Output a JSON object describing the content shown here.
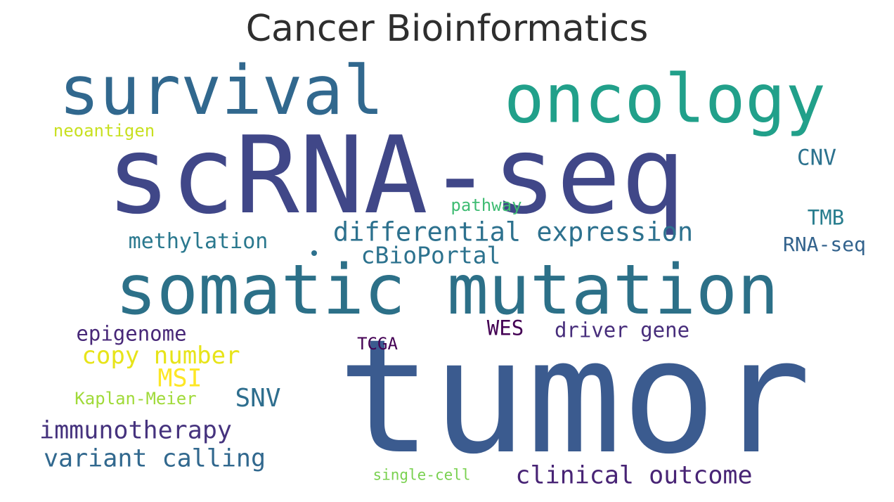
{
  "title": "Cancer Bioinformatics",
  "words": [
    {
      "id": "tumor",
      "text": "tumor",
      "color": "#3b5b8f"
    },
    {
      "id": "scrna-seq",
      "text": "scRNA-seq",
      "color": "#404788"
    },
    {
      "id": "somatic-mutation",
      "text": "somatic mutation",
      "color": "#2c7088"
    },
    {
      "id": "survival",
      "text": "survival",
      "color": "#31688e"
    },
    {
      "id": "oncology",
      "text": "oncology",
      "color": "#21a08a"
    },
    {
      "id": "differential-expression",
      "text": "differential expression",
      "color": "#2d718e"
    },
    {
      "id": "cbioportal",
      "text": "cBioPortal",
      "color": "#2c728e"
    },
    {
      "id": "methylation",
      "text": "methylation",
      "color": "#2a788e"
    },
    {
      "id": "pathway",
      "text": "pathway",
      "color": "#3fbc73"
    },
    {
      "id": "neoantigen",
      "text": "neoantigen",
      "color": "#c8e020"
    },
    {
      "id": "cnv",
      "text": "CNV",
      "color": "#2c728e"
    },
    {
      "id": "tmb",
      "text": "TMB",
      "color": "#287d8e"
    },
    {
      "id": "rna-seq",
      "text": "RNA-seq",
      "color": "#33638d"
    },
    {
      "id": "epigenome",
      "text": "epigenome",
      "color": "#482878"
    },
    {
      "id": "copy-number",
      "text": "copy number",
      "color": "#e7e419"
    },
    {
      "id": "msi",
      "text": "MSI",
      "color": "#fde725"
    },
    {
      "id": "wes",
      "text": "WES",
      "color": "#440154"
    },
    {
      "id": "driver-gene",
      "text": "driver gene",
      "color": "#472d7b"
    },
    {
      "id": "tcga",
      "text": "TCGA",
      "color": "#440154"
    },
    {
      "id": "kaplan-meier",
      "text": "Kaplan-Meier",
      "color": "#a0da39"
    },
    {
      "id": "snv",
      "text": "SNV",
      "color": "#2e6e8e"
    },
    {
      "id": "immunotherapy",
      "text": "immunotherapy",
      "color": "#46337e"
    },
    {
      "id": "variant-calling",
      "text": "variant calling",
      "color": "#31688e"
    },
    {
      "id": "single-cell",
      "text": "single-cell",
      "color": "#7ad151"
    },
    {
      "id": "clinical-outcome",
      "text": "clinical outcome",
      "color": "#482475"
    }
  ]
}
